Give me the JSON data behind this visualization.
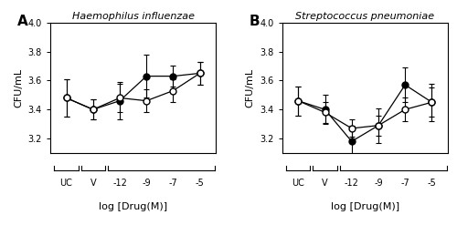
{
  "panel_A": {
    "title": "Haemophilus influenzae",
    "x_positions": [
      0,
      1,
      2,
      3,
      4,
      5
    ],
    "x_labels": [
      "UC",
      "V",
      "-12",
      "-9",
      "-7",
      "-5"
    ],
    "filled_y": [
      3.48,
      3.4,
      3.46,
      3.63,
      3.63,
      3.65
    ],
    "filled_yerr": [
      0.13,
      0.07,
      0.13,
      0.15,
      0.07,
      0.08
    ],
    "open_y": [
      3.48,
      3.4,
      3.48,
      3.46,
      3.53,
      3.65
    ],
    "open_yerr": [
      0.13,
      0.07,
      0.1,
      0.08,
      0.08,
      0.08
    ],
    "ylim": [
      3.1,
      4.0
    ],
    "yticks": [
      3.2,
      3.4,
      3.6,
      3.8,
      4.0
    ],
    "ylabel": "CFU/mL",
    "xlabel": "log [Drug(M)]"
  },
  "panel_B": {
    "title": "Streptococcus pneumoniae",
    "x_positions": [
      0,
      1,
      2,
      3,
      4,
      5
    ],
    "x_labels": [
      "UC",
      "V",
      "-12",
      "-9",
      "-7",
      "-5"
    ],
    "filled_y": [
      3.46,
      3.4,
      3.18,
      3.29,
      3.57,
      3.45
    ],
    "filled_yerr": [
      0.1,
      0.1,
      0.11,
      0.12,
      0.12,
      0.13
    ],
    "open_y": [
      3.46,
      3.38,
      3.27,
      3.29,
      3.4,
      3.45
    ],
    "open_yerr": [
      0.1,
      0.07,
      0.06,
      0.07,
      0.08,
      0.1
    ],
    "ylim": [
      3.1,
      4.0
    ],
    "yticks": [
      3.2,
      3.4,
      3.6,
      3.8,
      4.0
    ],
    "ylabel": "CFU/mL",
    "xlabel": "log [Drug(M)]"
  },
  "line_color": "#000000",
  "marker_size": 5,
  "capsize": 2.5,
  "linewidth": 0.9,
  "elinewidth": 0.8
}
